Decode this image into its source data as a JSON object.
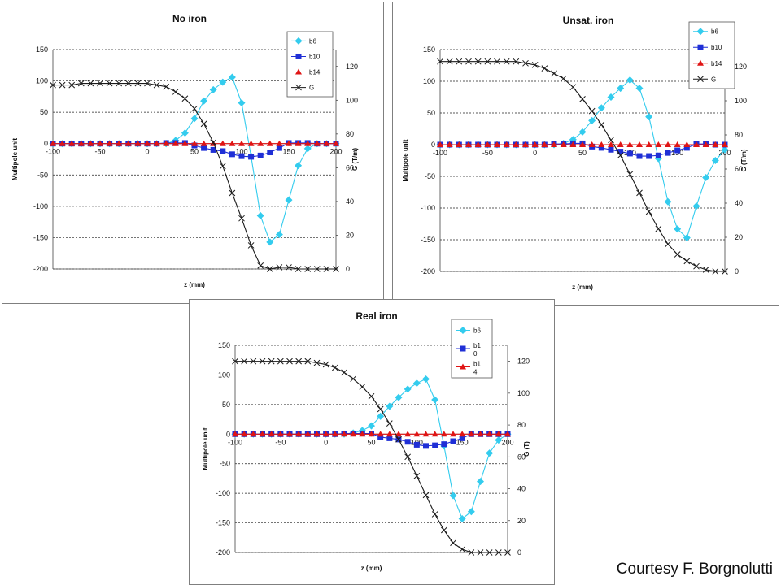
{
  "credit": "Courtesy F. Borgnolutti",
  "colors": {
    "b6": "#33ccee",
    "b10": "#1f2fd6",
    "b14": "#e01414",
    "G": "#1a1a1a"
  },
  "chart_data": [
    {
      "type": "line",
      "title": "No iron",
      "xlabel": "z (mm)",
      "ylabel": "Multipole unit",
      "y2label": "G (T/m)",
      "xlim": [
        -100,
        200
      ],
      "ylim": [
        -200,
        150
      ],
      "y2lim": [
        0,
        130
      ],
      "xticks": [
        -100,
        -50,
        0,
        50,
        100,
        150,
        200
      ],
      "yticks": [
        -200,
        -150,
        -100,
        -50,
        0,
        50,
        100,
        150
      ],
      "y2ticks": [
        0,
        20,
        40,
        60,
        80,
        100,
        120
      ],
      "legend": [
        "b6",
        "b10",
        "b14",
        "G"
      ],
      "legend_placement": "top-right",
      "x": [
        -100,
        -90,
        -80,
        -70,
        -60,
        -50,
        -40,
        -30,
        -20,
        -10,
        0,
        10,
        20,
        30,
        40,
        50,
        60,
        70,
        80,
        90,
        100,
        110,
        120,
        130,
        140,
        150,
        160,
        170,
        180,
        190,
        200
      ],
      "series": [
        {
          "name": "b6",
          "axis": "left",
          "values": [
            0,
            0,
            0,
            0,
            0,
            0,
            0,
            0,
            0,
            0,
            0,
            0,
            0,
            5,
            17,
            40,
            68,
            86,
            98,
            106,
            65,
            -20,
            -115,
            -157,
            -145,
            -90,
            -35,
            -8,
            0,
            0,
            0
          ]
        },
        {
          "name": "b10",
          "axis": "left",
          "values": [
            0,
            0,
            0,
            0,
            0,
            0,
            0,
            0,
            0,
            0,
            0,
            0,
            1,
            1,
            1,
            -3,
            -7,
            -10,
            -12,
            -17,
            -20,
            -21,
            -19,
            -14,
            -7,
            1,
            1,
            1,
            0,
            0,
            0
          ]
        },
        {
          "name": "b14",
          "axis": "left",
          "values": [
            0,
            0,
            0,
            0,
            0,
            0,
            0,
            0,
            0,
            0,
            0,
            0,
            0,
            0,
            0,
            0,
            0,
            0,
            0,
            0,
            0,
            0,
            0,
            0,
            0,
            0,
            0,
            0,
            0,
            0,
            0
          ]
        },
        {
          "name": "G",
          "axis": "right",
          "values": [
            109,
            109,
            109,
            110,
            110,
            110,
            110,
            110,
            110,
            110,
            110,
            109,
            108,
            105,
            101,
            95,
            86,
            75,
            61,
            45,
            30,
            14,
            2,
            0,
            1,
            1,
            0,
            0,
            0,
            0,
            0
          ]
        }
      ]
    },
    {
      "type": "line",
      "title": "Unsat. iron",
      "xlabel": "z (mm)",
      "ylabel": "Multipole unit",
      "y2label": "G (T/m)",
      "xlim": [
        -100,
        200
      ],
      "ylim": [
        -200,
        150
      ],
      "y2lim": [
        0,
        130
      ],
      "xticks": [
        -100,
        -50,
        0,
        50,
        100,
        150,
        200
      ],
      "yticks": [
        -200,
        -150,
        -100,
        -50,
        0,
        50,
        100,
        150
      ],
      "y2ticks": [
        0,
        20,
        40,
        60,
        80,
        100,
        120
      ],
      "legend": [
        "b6",
        "b10",
        "b14",
        "G"
      ],
      "legend_placement": "top-right",
      "x": [
        -100,
        -90,
        -80,
        -70,
        -60,
        -50,
        -40,
        -30,
        -20,
        -10,
        0,
        10,
        20,
        30,
        40,
        50,
        60,
        70,
        80,
        90,
        100,
        110,
        120,
        130,
        140,
        150,
        160,
        170,
        180,
        190,
        200
      ],
      "series": [
        {
          "name": "b6",
          "axis": "left",
          "values": [
            0,
            0,
            0,
            0,
            0,
            0,
            0,
            0,
            0,
            0,
            0,
            0,
            0,
            2,
            8,
            20,
            38,
            58,
            75,
            89,
            102,
            89,
            44,
            -22,
            -90,
            -133,
            -147,
            -97,
            -52,
            -25,
            -8
          ]
        },
        {
          "name": "b10",
          "axis": "left",
          "values": [
            0,
            0,
            0,
            0,
            0,
            0,
            0,
            0,
            0,
            0,
            0,
            0,
            1,
            1,
            2,
            2,
            -3,
            -5,
            -8,
            -11,
            -14,
            -18,
            -18,
            -17,
            -13,
            -9,
            -5,
            1,
            1,
            0,
            0
          ]
        },
        {
          "name": "b14",
          "axis": "left",
          "values": [
            0,
            0,
            0,
            0,
            0,
            0,
            0,
            0,
            0,
            0,
            0,
            0,
            0,
            0,
            0,
            0,
            0,
            0,
            0,
            0,
            0,
            0,
            0,
            0,
            0,
            0,
            0,
            0,
            0,
            0,
            0
          ]
        },
        {
          "name": "G",
          "axis": "right",
          "values": [
            123,
            123,
            123,
            123,
            123,
            123,
            123,
            123,
            123,
            122,
            121,
            119,
            116,
            113,
            108,
            101,
            94,
            86,
            77,
            68,
            57,
            46,
            35,
            25,
            16,
            10,
            6,
            3,
            1,
            0,
            0
          ]
        }
      ]
    },
    {
      "type": "line",
      "title": "Real iron",
      "xlabel": "z (mm)",
      "ylabel": "Multipole unit",
      "y2label": "G (T)",
      "xlim": [
        -100,
        200
      ],
      "ylim": [
        -200,
        150
      ],
      "y2lim": [
        0,
        130
      ],
      "xticks": [
        -100,
        -50,
        0,
        50,
        100,
        150,
        200
      ],
      "yticks": [
        -200,
        -150,
        -100,
        -50,
        0,
        50,
        100,
        150
      ],
      "y2ticks": [
        0,
        20,
        40,
        60,
        80,
        100,
        120
      ],
      "legend": [
        "b6",
        "b1\n0",
        "b1\n4"
      ],
      "legend_placement": "top-right",
      "x": [
        -100,
        -90,
        -80,
        -70,
        -60,
        -50,
        -40,
        -30,
        -20,
        -10,
        0,
        10,
        20,
        30,
        40,
        50,
        60,
        70,
        80,
        90,
        100,
        110,
        120,
        130,
        140,
        150,
        160,
        170,
        180,
        190,
        200
      ],
      "series": [
        {
          "name": "b6",
          "axis": "left",
          "values": [
            0,
            0,
            0,
            0,
            0,
            0,
            0,
            0,
            0,
            0,
            0,
            0,
            0,
            2,
            6,
            14,
            30,
            47,
            62,
            76,
            86,
            93,
            58,
            -20,
            -104,
            -143,
            -131,
            -80,
            -32,
            -10,
            0
          ]
        },
        {
          "name": "b10",
          "axis": "left",
          "values": [
            0,
            0,
            0,
            0,
            0,
            0,
            0,
            0,
            0,
            0,
            0,
            0,
            1,
            1,
            1,
            1,
            -5,
            -7,
            -9,
            -13,
            -18,
            -20,
            -19,
            -17,
            -12,
            -7,
            0,
            0,
            0,
            0,
            0
          ]
        },
        {
          "name": "b14",
          "axis": "left",
          "values": [
            0,
            0,
            0,
            0,
            0,
            0,
            0,
            0,
            0,
            0,
            0,
            0,
            0,
            0,
            0,
            0,
            0,
            0,
            0,
            0,
            0,
            0,
            0,
            0,
            0,
            0,
            0,
            0,
            0,
            0,
            0
          ]
        },
        {
          "name": "G",
          "axis": "right",
          "values": [
            120,
            120,
            120,
            120,
            120,
            120,
            120,
            120,
            120,
            119,
            118,
            116,
            113,
            109,
            104,
            98,
            90,
            81,
            71,
            60,
            48,
            36,
            24,
            14,
            6,
            2,
            0,
            0,
            0,
            0,
            0
          ]
        }
      ]
    }
  ]
}
